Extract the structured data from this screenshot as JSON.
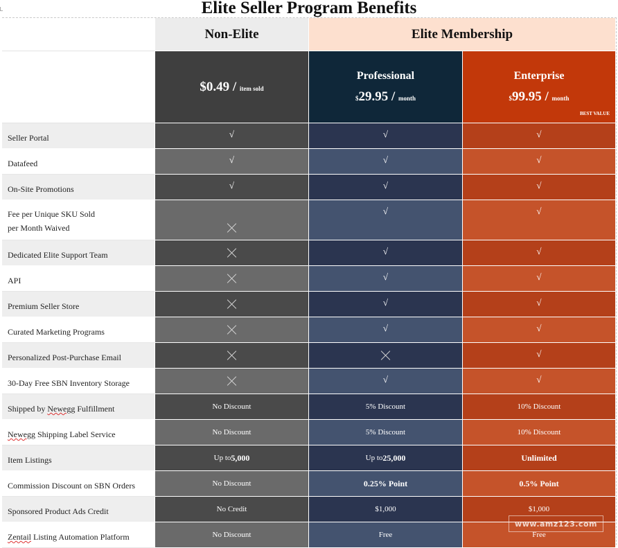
{
  "title": "Elite Seller Program Benefits",
  "headers": {
    "non_elite": "Non-Elite",
    "elite": "Elite Membership"
  },
  "tiers": {
    "non_elite": {
      "price": "$0.49",
      "sep": " / ",
      "unit": "item sold"
    },
    "professional": {
      "name": "Professional",
      "currency": "$",
      "price": "29.95",
      "sep": " / ",
      "unit": "month"
    },
    "enterprise": {
      "name": "Enterprise",
      "currency": "$",
      "price": "99.95",
      "sep": " / ",
      "unit": "month",
      "badge": "BEST VALUE"
    }
  },
  "rows": [
    {
      "label": "Seller Portal",
      "cells": [
        "√",
        "√",
        "√"
      ]
    },
    {
      "label": "Datafeed",
      "cells": [
        "√",
        "√",
        "√"
      ]
    },
    {
      "label": "On-Site Promotions",
      "cells": [
        "√",
        "√",
        "√"
      ]
    },
    {
      "label_line1": "Fee per Unique SKU Sold",
      "label_line2": "per Month Waived",
      "cells": [
        "x",
        "√",
        "√"
      ]
    },
    {
      "label": "Dedicated Elite Support Team",
      "cells": [
        "x",
        "√",
        "√"
      ]
    },
    {
      "label": "API",
      "cells": [
        "x",
        "√",
        "√"
      ]
    },
    {
      "label": "Premium Seller Store",
      "cells": [
        "x",
        "√",
        "√"
      ]
    },
    {
      "label": "Curated Marketing Programs",
      "cells": [
        "x",
        "√",
        "√"
      ]
    },
    {
      "label": "Personalized Post-Purchase Email",
      "cells": [
        "x",
        "x",
        "√"
      ]
    },
    {
      "label": "30-Day Free SBN Inventory Storage",
      "cells": [
        "x",
        "√",
        "√"
      ]
    },
    {
      "label_pre": "Shipped by ",
      "label_squig": "Newegg",
      "label_post": " Fulfillment",
      "cells": [
        "No Discount",
        "5% Discount",
        "10% Discount"
      ]
    },
    {
      "label_pre": "",
      "label_squig": "Newegg",
      "label_post": " Shipping Label Service",
      "cells": [
        "No Discount",
        "5% Discount",
        "10% Discount"
      ]
    },
    {
      "label": "Item Listings",
      "cells": [
        {
          "pre": "Up to ",
          "bold": "5,000"
        },
        {
          "pre": "Up to ",
          "bold": "25,000"
        },
        {
          "pre": "",
          "bold": "Unlimited"
        }
      ]
    },
    {
      "label": "Commission Discount on SBN Orders",
      "cells": [
        "No Discount",
        {
          "pre": "",
          "bold": "0.25% Point"
        },
        {
          "pre": "",
          "bold": "0.5% Point"
        }
      ]
    },
    {
      "label": "Sponsored Product Ads Credit",
      "cells": [
        "No Credit",
        "$1,000",
        "$1,000"
      ]
    },
    {
      "label_pre": "",
      "label_squig": "Zentail",
      "label_post": " Listing Automation Platform",
      "cells": [
        "No Discount",
        "Free",
        "Free"
      ]
    }
  ],
  "watermark": "www.amz123.com"
}
